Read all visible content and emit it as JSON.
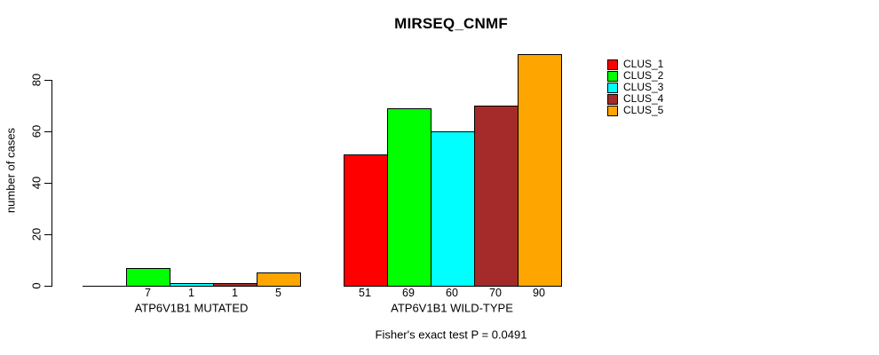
{
  "chart_data": {
    "type": "bar",
    "title": "MIRSEQ_CNMF",
    "ylabel": "number of cases",
    "xlabel": "",
    "yticks": [
      0,
      20,
      40,
      60,
      80
    ],
    "ylim": [
      0,
      93
    ],
    "grid": false,
    "legend_position": "right-outside",
    "categories": [
      "ATP6V1B1 MUTATED",
      "ATP6V1B1 WILD-TYPE"
    ],
    "series": [
      {
        "name": "CLUS_1",
        "color": "#ff0000",
        "values": [
          0,
          51
        ]
      },
      {
        "name": "CLUS_2",
        "color": "#00ff00",
        "values": [
          7,
          69
        ]
      },
      {
        "name": "CLUS_3",
        "color": "#00ffff",
        "values": [
          1,
          60
        ]
      },
      {
        "name": "CLUS_4",
        "color": "#a52a2a",
        "values": [
          1,
          70
        ]
      },
      {
        "name": "CLUS_5",
        "color": "#ffa500",
        "values": [
          5,
          90
        ]
      }
    ],
    "bar_value_labels": [
      [
        "",
        "7",
        "1",
        "1",
        "5"
      ],
      [
        "51",
        "69",
        "60",
        "70",
        "90"
      ]
    ],
    "annotation": "Fisher's exact test P = 0.0491"
  }
}
